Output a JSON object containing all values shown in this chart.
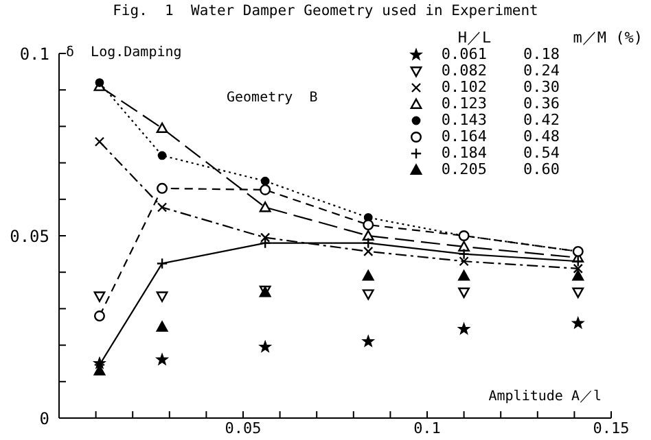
{
  "chart_data": {
    "type": "line",
    "title": "Fig.  1  Water Damper Geometry used in Experiment",
    "xlabel": "Amplitude A／l",
    "ylabel": "δ  Log.Damping",
    "annotations": [
      "Geometry  B"
    ],
    "legend_title": "H／L         m／M (%)",
    "legend": "top right",
    "xlim": [
      0,
      0.15
    ],
    "ylim": [
      0,
      0.1
    ],
    "xticks": [
      {
        "value": 0,
        "label": null
      },
      {
        "value": 0.01,
        "label": null
      },
      {
        "value": 0.02,
        "label": null
      },
      {
        "value": 0.03,
        "label": null
      },
      {
        "value": 0.04,
        "label": null
      },
      0.05,
      {
        "value": 0.06,
        "label": null
      },
      {
        "value": 0.07,
        "label": null
      },
      {
        "value": 0.08,
        "label": null
      },
      {
        "value": 0.09,
        "label": null
      },
      0.1,
      {
        "value": 0.11,
        "label": null
      },
      {
        "value": 0.12,
        "label": null
      },
      {
        "value": 0.13,
        "label": null
      },
      {
        "value": 0.14,
        "label": null
      },
      0.15
    ],
    "yticks": [
      0,
      {
        "value": 0.01,
        "label": null
      },
      {
        "value": 0.02,
        "label": null
      },
      {
        "value": 0.03,
        "label": null
      },
      {
        "value": 0.04,
        "label": null
      },
      0.05,
      {
        "value": 0.06,
        "label": null
      },
      {
        "value": 0.07,
        "label": null
      },
      {
        "value": 0.08,
        "label": null
      },
      {
        "value": 0.09,
        "label": null
      },
      0.1
    ],
    "x": [
      0.011,
      0.028,
      0.056,
      0.084,
      0.11,
      0.141
    ],
    "series": [
      {
        "name": "0.061    0.18",
        "type": "scatter",
        "marker": "star",
        "color": "#000000",
        "values": [
          0.015,
          0.016,
          0.0195,
          0.021,
          0.0244,
          0.026
        ]
      },
      {
        "name": "0.082    0.24",
        "type": "scatter",
        "marker": "triangle-down-open",
        "color": "#000000",
        "values": [
          0.0334,
          0.0334,
          0.035,
          0.034,
          0.0345,
          0.0345
        ]
      },
      {
        "name": "0.102    0.30",
        "line_style": "dashdot",
        "marker": "x",
        "color": "#000000",
        "values": [
          0.0758,
          0.0578,
          0.0495,
          0.0457,
          0.043,
          0.041
        ]
      },
      {
        "name": "0.123    0.36",
        "line_style": "longdash",
        "marker": "triangle-open",
        "color": "#000000",
        "values": [
          0.091,
          0.0795,
          0.0578,
          0.05,
          0.047,
          0.044
        ]
      },
      {
        "name": "0.143    0.42",
        "line_style": "dotted",
        "marker": "circle",
        "color": "#000000",
        "values": [
          0.092,
          0.072,
          0.065,
          0.055,
          0.05,
          0.0457
        ]
      },
      {
        "name": "0.164    0.48",
        "line_style": "dashed",
        "marker": "circle-open",
        "color": "#000000",
        "values": [
          0.028,
          0.063,
          0.0626,
          0.053,
          0.05,
          0.0457
        ]
      },
      {
        "name": "0.184    0.54",
        "line_style": "solid",
        "marker": "cross",
        "color": "#000000",
        "values": [
          0.0146,
          0.0424,
          0.048,
          0.048,
          0.045,
          0.043
        ]
      },
      {
        "name": "0.205    0.60",
        "type": "scatter",
        "marker": "triangle",
        "color": "#000000",
        "values": [
          0.013,
          0.025,
          0.0345,
          0.039,
          0.039,
          0.039
        ]
      }
    ]
  }
}
